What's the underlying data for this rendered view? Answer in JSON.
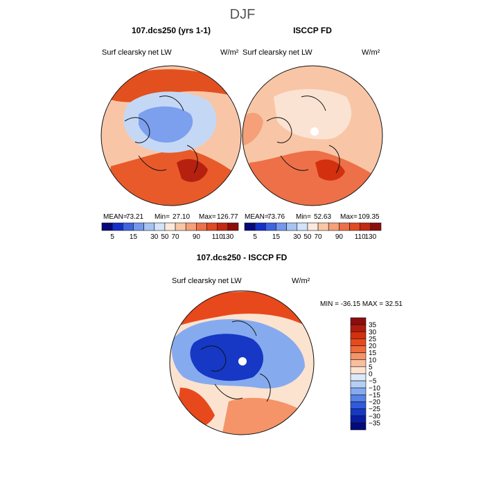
{
  "page_title": "DJF",
  "panels": [
    {
      "title": "107.dcs250 (yrs 1-1)",
      "variable": "Surf clearsky net LW",
      "units": "W/m²",
      "stats": {
        "mean_label": "MEAN=",
        "mean": "73.21",
        "min_label": "Min=",
        "min": "27.10",
        "max_label": "Max=",
        "max": "126.77"
      }
    },
    {
      "title": "ISCCP FD",
      "variable": "Surf clearsky net LW",
      "units": "W/m²",
      "stats": {
        "mean_label": "MEAN=",
        "mean": "73.76",
        "min_label": "Min=",
        "min": "52.63",
        "max_label": "Max=",
        "max": "109.35"
      }
    },
    {
      "title": "107.dcs250 - ISCCP FD",
      "variable": "Surf clearsky net LW",
      "units": "W/m²",
      "minmax_text": "MIN = -36.15 MAX =  32.51"
    }
  ],
  "chart_data": [
    {
      "type": "heatmap",
      "title": "107.dcs250 (yrs 1-1)",
      "projection": "north-polar-stereographic",
      "variable": "Surf clearsky net LW",
      "units": "W/m²",
      "mean": 73.21,
      "min": 27.1,
      "max": 126.77,
      "colorbar_levels": [
        5,
        15,
        30,
        50,
        70,
        90,
        110,
        130
      ],
      "colorbar_tick_labels": [
        "5",
        "15",
        "30",
        "50",
        "70",
        "90",
        "110",
        "130"
      ],
      "colorbar_colors": [
        "#08087a",
        "#1530c8",
        "#3e64e0",
        "#7498ec",
        "#a6c3f3",
        "#d3e3f9",
        "#fbe9dc",
        "#f9c7a6",
        "#f5a079",
        "#ee7048",
        "#e04b22",
        "#c32a11",
        "#8c0d0d"
      ],
      "colorbar_orientation": "horizontal"
    },
    {
      "type": "heatmap",
      "title": "ISCCP FD",
      "projection": "north-polar-stereographic",
      "variable": "Surf clearsky net LW",
      "units": "W/m²",
      "mean": 73.76,
      "min": 52.63,
      "max": 109.35,
      "colorbar_levels": [
        5,
        15,
        30,
        50,
        70,
        90,
        110,
        130
      ],
      "colorbar_tick_labels": [
        "5",
        "15",
        "30",
        "50",
        "70",
        "90",
        "110",
        "130"
      ],
      "colorbar_colors": [
        "#08087a",
        "#1530c8",
        "#3e64e0",
        "#7498ec",
        "#a6c3f3",
        "#d3e3f9",
        "#fbe9dc",
        "#f9c7a6",
        "#f5a079",
        "#ee7048",
        "#e04b22",
        "#c32a11",
        "#8c0d0d"
      ],
      "colorbar_orientation": "horizontal"
    },
    {
      "type": "heatmap",
      "title": "107.dcs250 - ISCCP FD",
      "projection": "north-polar-stereographic",
      "variable": "Surf clearsky net LW",
      "units": "W/m²",
      "min": -36.15,
      "max": 32.51,
      "colorbar_levels": [
        35,
        30,
        25,
        20,
        15,
        10,
        5,
        0,
        -5,
        -10,
        -15,
        -20,
        -25,
        -30,
        -35
      ],
      "colorbar_tick_labels": [
        "35",
        "30",
        "25",
        "20",
        "15",
        "10",
        "5",
        "0",
        "−5",
        "−10",
        "−15",
        "−20",
        "−25",
        "−30",
        "−35"
      ],
      "colorbar_colors": [
        "#8c0d0d",
        "#b01c0c",
        "#d2300f",
        "#e8491c",
        "#f06a3a",
        "#f49468",
        "#f8bea0",
        "#fbe3d0",
        "#dce9f9",
        "#b5cff4",
        "#86aaee",
        "#5782e6",
        "#2f5adc",
        "#1638c4",
        "#0a1ca0",
        "#050a7a"
      ],
      "colorbar_orientation": "vertical"
    }
  ]
}
